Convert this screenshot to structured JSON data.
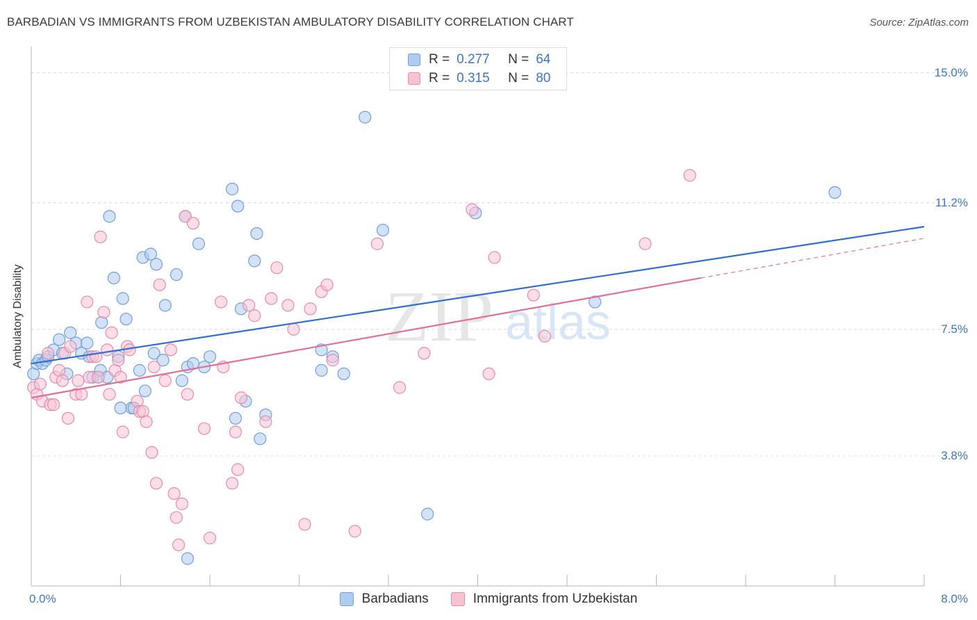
{
  "title": "BARBADIAN VS IMMIGRANTS FROM UZBEKISTAN AMBULATORY DISABILITY CORRELATION CHART",
  "source": "Source: ZipAtlas.com",
  "watermark": {
    "zip": "ZIP",
    "atlas": "atlas"
  },
  "legend_top": {
    "rows": [
      {
        "r_label": "R =",
        "r_value": "0.277",
        "n_label": "N =",
        "n_value": "64"
      },
      {
        "r_label": "R =",
        "r_value": "0.315",
        "n_label": "N =",
        "n_value": "80"
      }
    ]
  },
  "legend_bottom": {
    "items": [
      "Barbadians",
      "Immigrants from Uzbekistan"
    ]
  },
  "colors": {
    "blue_fill": "#aecbf0",
    "blue_stroke": "#6f9fdc",
    "blue_line": "#2f6fd1",
    "pink_fill": "#f7c3d3",
    "pink_stroke": "#e88aa8",
    "pink_line": "#e0709a",
    "grid": "#dcdcdc",
    "axis_label": "#3a77c9"
  },
  "chart_data": {
    "type": "scatter",
    "title": "BARBADIAN VS IMMIGRANTS FROM UZBEKISTAN AMBULATORY DISABILITY CORRELATION CHART",
    "xlabel": "",
    "ylabel": "Ambulatory Disability",
    "xlim": [
      0,
      8
    ],
    "ylim": [
      0,
      15.5
    ],
    "x_tick_labels": [
      {
        "value": 0,
        "label": "0.0%"
      },
      {
        "value": 8,
        "label": "8.0%"
      }
    ],
    "y_tick_labels": [
      {
        "value": 3.8,
        "label": "3.8%"
      },
      {
        "value": 7.5,
        "label": "7.5%"
      },
      {
        "value": 11.2,
        "label": "11.2%"
      },
      {
        "value": 15.0,
        "label": "15.0%"
      }
    ],
    "x_minor_ticks": [
      0,
      0.8,
      1.6,
      2.4,
      3.2,
      4.0,
      4.8,
      5.6,
      6.4,
      7.2,
      8.0
    ],
    "grid": true,
    "series": [
      {
        "name": "Barbadians",
        "color": "#6f9fdc",
        "r": 0.277,
        "n": 64,
        "trend": {
          "x0": 0.0,
          "y0": 6.5,
          "x1": 8.0,
          "y1": 10.5
        },
        "points": [
          [
            0.02,
            6.2
          ],
          [
            0.05,
            6.5
          ],
          [
            0.07,
            6.6
          ],
          [
            0.1,
            6.5
          ],
          [
            0.13,
            6.6
          ],
          [
            0.15,
            6.7
          ],
          [
            0.2,
            6.9
          ],
          [
            0.25,
            7.2
          ],
          [
            0.28,
            6.8
          ],
          [
            0.32,
            6.2
          ],
          [
            0.35,
            7.4
          ],
          [
            0.4,
            7.1
          ],
          [
            0.45,
            6.8
          ],
          [
            0.5,
            7.1
          ],
          [
            0.52,
            6.7
          ],
          [
            0.55,
            6.1
          ],
          [
            0.6,
            6.1
          ],
          [
            0.62,
            6.3
          ],
          [
            0.63,
            7.7
          ],
          [
            0.68,
            6.1
          ],
          [
            0.7,
            10.8
          ],
          [
            0.74,
            9.0
          ],
          [
            0.78,
            6.7
          ],
          [
            0.8,
            5.2
          ],
          [
            0.82,
            8.4
          ],
          [
            0.85,
            7.8
          ],
          [
            0.9,
            5.2
          ],
          [
            0.92,
            5.2
          ],
          [
            0.97,
            6.3
          ],
          [
            1.0,
            9.6
          ],
          [
            1.02,
            5.7
          ],
          [
            1.07,
            9.7
          ],
          [
            1.1,
            6.8
          ],
          [
            1.12,
            9.4
          ],
          [
            1.18,
            6.6
          ],
          [
            1.2,
            8.2
          ],
          [
            1.3,
            9.1
          ],
          [
            1.35,
            6.0
          ],
          [
            1.38,
            10.8
          ],
          [
            1.4,
            6.4
          ],
          [
            1.45,
            6.5
          ],
          [
            1.5,
            10.0
          ],
          [
            1.55,
            6.4
          ],
          [
            1.6,
            6.7
          ],
          [
            1.4,
            0.8
          ],
          [
            1.8,
            11.6
          ],
          [
            1.83,
            4.9
          ],
          [
            1.85,
            11.1
          ],
          [
            1.88,
            8.1
          ],
          [
            1.92,
            5.4
          ],
          [
            2.0,
            9.5
          ],
          [
            2.02,
            10.3
          ],
          [
            2.05,
            4.3
          ],
          [
            2.1,
            5.0
          ],
          [
            2.6,
            6.3
          ],
          [
            2.6,
            6.9
          ],
          [
            2.7,
            6.7
          ],
          [
            2.8,
            6.2
          ],
          [
            2.99,
            13.7
          ],
          [
            3.15,
            10.4
          ],
          [
            3.55,
            2.1
          ],
          [
            3.98,
            10.9
          ],
          [
            5.05,
            8.3
          ],
          [
            7.2,
            11.5
          ]
        ]
      },
      {
        "name": "Immigrants from Uzbekistan",
        "color": "#e88aa8",
        "r": 0.315,
        "n": 80,
        "trend": {
          "x0": 0.0,
          "y0": 5.5,
          "x1": 6.0,
          "y1": 9.0
        },
        "trend_dashed": {
          "x0": 6.0,
          "y0": 9.0,
          "x1": 8.0,
          "y1": 10.16
        },
        "points": [
          [
            0.02,
            5.8
          ],
          [
            0.05,
            5.6
          ],
          [
            0.08,
            5.9
          ],
          [
            0.1,
            5.4
          ],
          [
            0.15,
            6.8
          ],
          [
            0.17,
            5.3
          ],
          [
            0.2,
            5.3
          ],
          [
            0.22,
            6.1
          ],
          [
            0.25,
            6.3
          ],
          [
            0.28,
            6.0
          ],
          [
            0.3,
            6.8
          ],
          [
            0.33,
            4.9
          ],
          [
            0.35,
            7.0
          ],
          [
            0.4,
            5.6
          ],
          [
            0.42,
            6.0
          ],
          [
            0.45,
            5.6
          ],
          [
            0.5,
            8.3
          ],
          [
            0.52,
            6.1
          ],
          [
            0.55,
            6.7
          ],
          [
            0.58,
            6.7
          ],
          [
            0.6,
            6.1
          ],
          [
            0.62,
            10.2
          ],
          [
            0.65,
            8.0
          ],
          [
            0.68,
            6.9
          ],
          [
            0.7,
            5.6
          ],
          [
            0.72,
            7.4
          ],
          [
            0.75,
            6.3
          ],
          [
            0.78,
            6.6
          ],
          [
            0.8,
            6.1
          ],
          [
            0.82,
            4.5
          ],
          [
            0.86,
            7.0
          ],
          [
            0.88,
            6.9
          ],
          [
            0.95,
            5.4
          ],
          [
            0.97,
            5.1
          ],
          [
            1.0,
            5.1
          ],
          [
            1.03,
            4.8
          ],
          [
            1.08,
            3.9
          ],
          [
            1.1,
            6.4
          ],
          [
            1.12,
            3.0
          ],
          [
            1.15,
            8.8
          ],
          [
            1.2,
            6.0
          ],
          [
            1.25,
            6.9
          ],
          [
            1.28,
            2.7
          ],
          [
            1.3,
            2.0
          ],
          [
            1.32,
            1.2
          ],
          [
            1.35,
            2.4
          ],
          [
            1.38,
            10.8
          ],
          [
            1.4,
            5.6
          ],
          [
            1.45,
            10.6
          ],
          [
            1.55,
            4.6
          ],
          [
            1.6,
            1.4
          ],
          [
            1.7,
            8.3
          ],
          [
            1.72,
            6.4
          ],
          [
            1.8,
            3.0
          ],
          [
            1.83,
            4.5
          ],
          [
            1.85,
            3.4
          ],
          [
            1.88,
            5.5
          ],
          [
            1.95,
            8.2
          ],
          [
            2.0,
            7.9
          ],
          [
            2.1,
            4.8
          ],
          [
            2.15,
            8.4
          ],
          [
            2.2,
            9.3
          ],
          [
            2.3,
            8.2
          ],
          [
            2.35,
            7.5
          ],
          [
            2.45,
            1.8
          ],
          [
            2.5,
            8.1
          ],
          [
            2.6,
            8.6
          ],
          [
            2.65,
            8.8
          ],
          [
            2.7,
            6.6
          ],
          [
            2.9,
            1.6
          ],
          [
            3.1,
            10.0
          ],
          [
            3.3,
            5.8
          ],
          [
            3.52,
            6.8
          ],
          [
            3.95,
            11.0
          ],
          [
            4.1,
            6.2
          ],
          [
            4.15,
            9.6
          ],
          [
            4.5,
            8.5
          ],
          [
            4.6,
            7.3
          ],
          [
            5.9,
            12.0
          ],
          [
            5.5,
            10.0
          ]
        ]
      }
    ]
  }
}
